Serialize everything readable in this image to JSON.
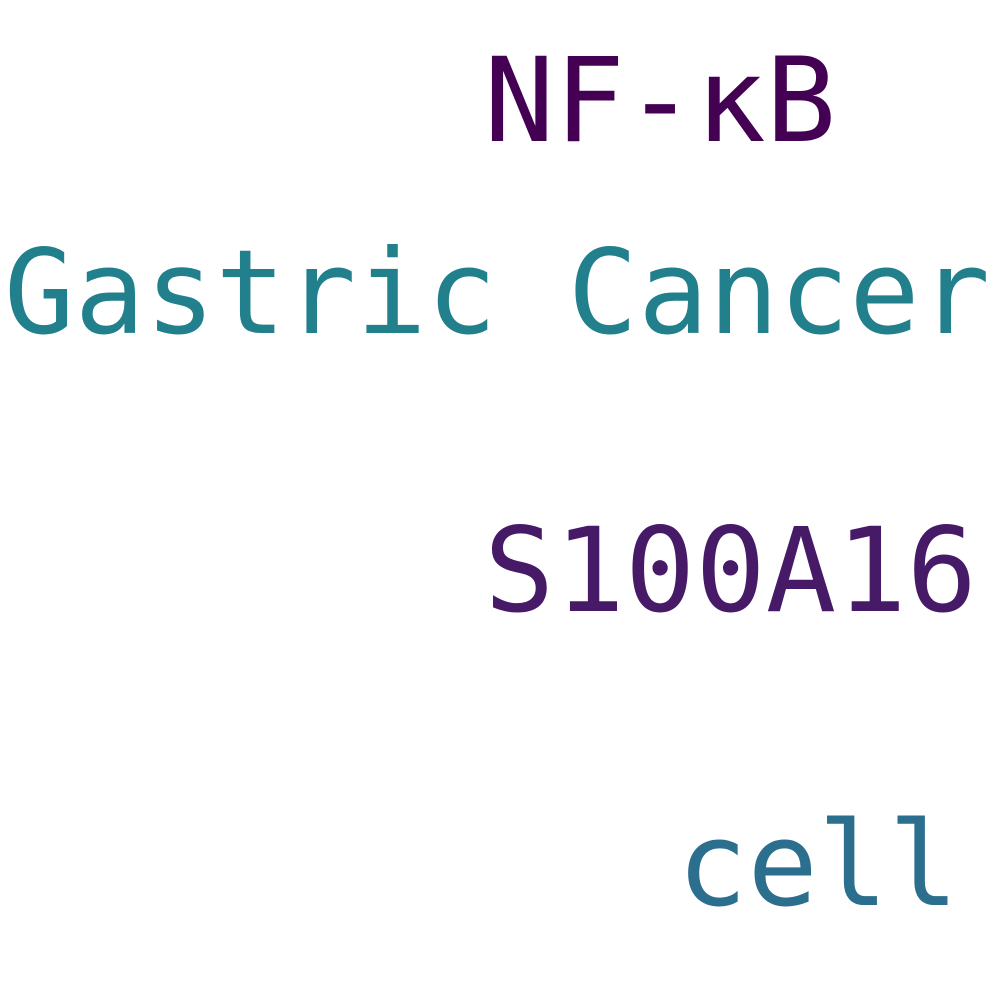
{
  "words": [
    {
      "text": "NF-κB",
      "color": "#440154"
    },
    {
      "text": "Gastric Cancer",
      "color": "#21808c"
    },
    {
      "text": "S100A16",
      "color": "#471a68"
    },
    {
      "text": "cell",
      "color": "#2c6e8e"
    }
  ]
}
